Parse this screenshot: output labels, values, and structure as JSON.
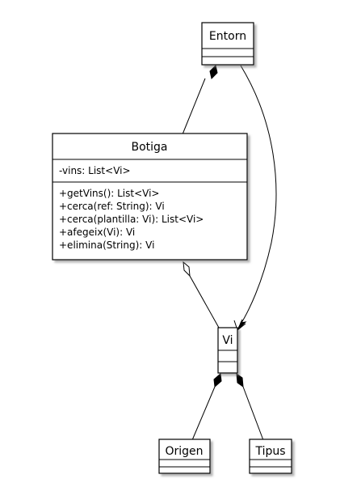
{
  "diagram": {
    "type": "uml-class-diagram",
    "classes": {
      "entorn": {
        "name": "Entorn",
        "attributes": [],
        "methods": []
      },
      "botiga": {
        "name": "Botiga",
        "attributes": [
          "-vins: List<Vi>"
        ],
        "methods": [
          "+getVins(): List<Vi>",
          "+cerca(ref: String): Vi",
          "+cerca(plantilla: Vi): List<Vi>",
          "+afegeix(Vi): Vi",
          "+elimina(String): Vi"
        ]
      },
      "vi": {
        "name": "Vi",
        "attributes": [],
        "methods": []
      },
      "origen": {
        "name": "Origen",
        "attributes": [],
        "methods": []
      },
      "tipus": {
        "name": "Tipus",
        "attributes": [],
        "methods": []
      }
    },
    "relations": [
      {
        "from": "Entorn",
        "to": "Botiga",
        "kind": "composition"
      },
      {
        "from": "Entorn",
        "to": "Vi",
        "kind": "directed-association"
      },
      {
        "from": "Botiga",
        "to": "Vi",
        "kind": "aggregation"
      },
      {
        "from": "Vi",
        "to": "Origen",
        "kind": "composition"
      },
      {
        "from": "Vi",
        "to": "Tipus",
        "kind": "composition"
      }
    ]
  },
  "colors": {
    "background": "#ffffff",
    "border": "#000000",
    "shadow": "#8a8a8a",
    "fill": "#ffffff"
  }
}
